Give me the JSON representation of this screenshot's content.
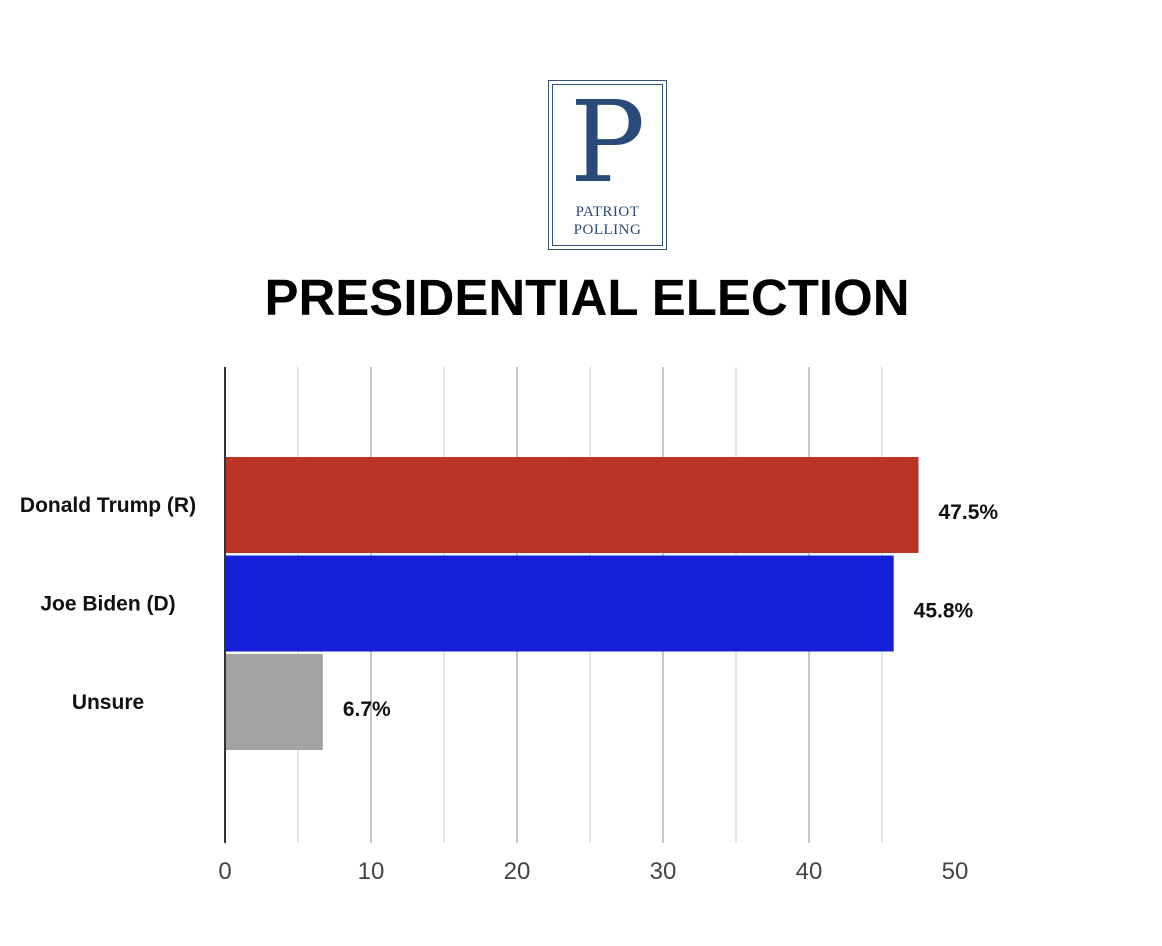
{
  "logo": {
    "letter": "P",
    "line1": "PATRIOT",
    "line2": "POLLING"
  },
  "chart_data": {
    "type": "bar",
    "orientation": "horizontal",
    "title": "PRESIDENTIAL ELECTION",
    "categories": [
      "Donald Trump (R)",
      "Joe Biden (D)",
      "Unsure"
    ],
    "values": [
      47.5,
      45.8,
      6.7
    ],
    "data_labels": [
      "47.5%",
      "45.8%",
      "6.7%"
    ],
    "colors": [
      "#bb3526",
      "#1620d9",
      "#a3a3a3"
    ],
    "xlim": [
      0,
      50
    ],
    "xticks": [
      0,
      10,
      20,
      30,
      40,
      50
    ],
    "xlabel": "",
    "ylabel": "",
    "grid": true,
    "legend": false
  }
}
